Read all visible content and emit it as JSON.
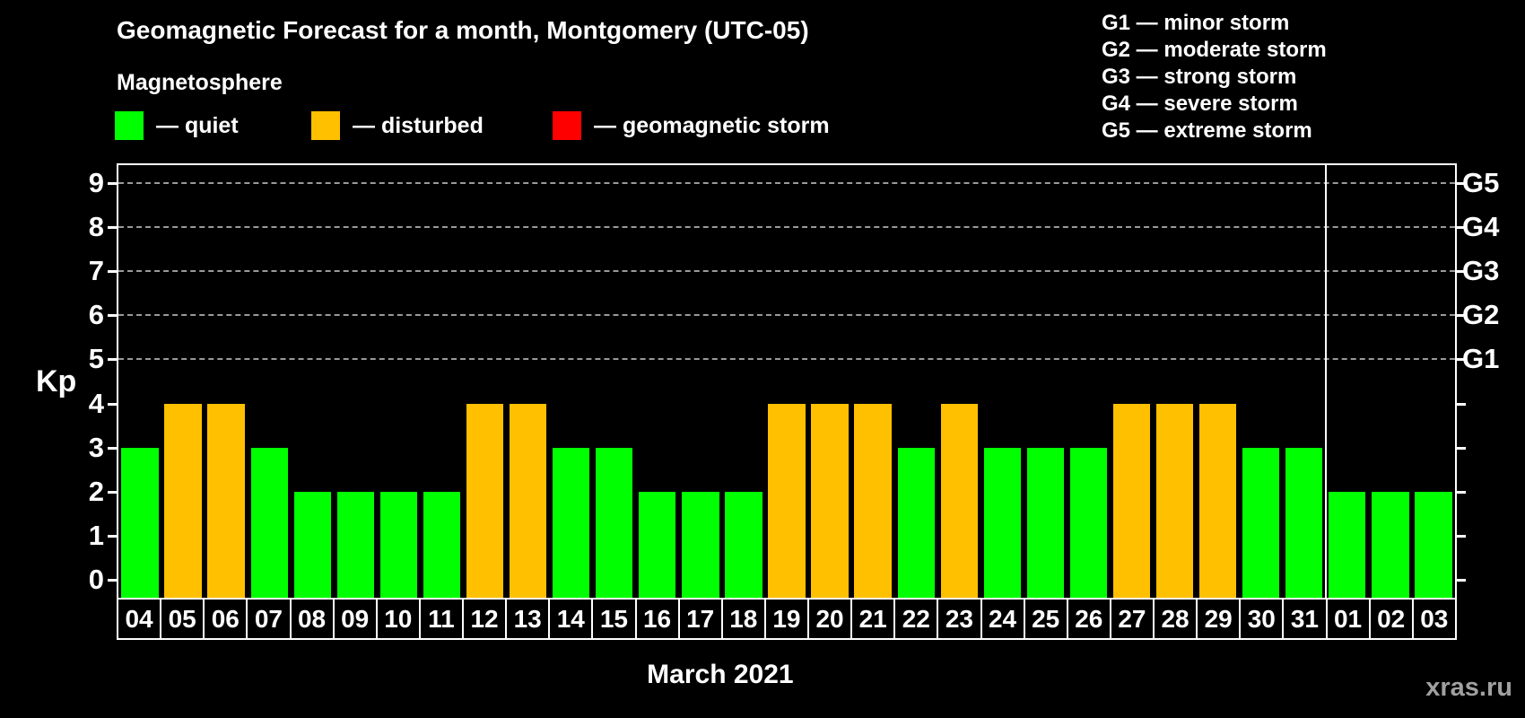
{
  "title": "Geomagnetic Forecast for a month, Montgomery (UTC-05)",
  "subtitle": "Magnetosphere",
  "kp_legend": [
    {
      "label": "— quiet",
      "color": "#00ff00"
    },
    {
      "label": "— disturbed",
      "color": "#ffc000"
    },
    {
      "label": "— geomagnetic storm",
      "color": "#ff0000"
    }
  ],
  "g_legend": [
    "G1 — minor storm",
    "G2 — moderate storm",
    "G3 — strong storm",
    "G4 — severe storm",
    "G5 — extreme storm"
  ],
  "watermark": "xras.ru",
  "chart_data": {
    "type": "bar",
    "title": "Geomagnetic Forecast for a month, Montgomery (UTC-05)",
    "ylabel": "Kp",
    "month_label": "March 2021",
    "ylim": [
      0,
      9
    ],
    "grid": "dashed horizontal at Kp 5-9",
    "legend_position": "top",
    "categories": [
      "04",
      "05",
      "06",
      "07",
      "08",
      "09",
      "10",
      "11",
      "12",
      "13",
      "14",
      "15",
      "16",
      "17",
      "18",
      "19",
      "20",
      "21",
      "22",
      "23",
      "24",
      "25",
      "26",
      "27",
      "28",
      "29",
      "30",
      "31",
      "01",
      "02",
      "03"
    ],
    "values": [
      3,
      4,
      4,
      3,
      2,
      2,
      2,
      2,
      4,
      4,
      3,
      3,
      2,
      2,
      2,
      4,
      4,
      4,
      3,
      4,
      3,
      3,
      3,
      4,
      4,
      4,
      3,
      3,
      2,
      2,
      2
    ],
    "month_boundary_after_index": 27,
    "y_ticks_left": [
      "0",
      "1",
      "2",
      "3",
      "4",
      "5",
      "6",
      "7",
      "8",
      "9"
    ],
    "g_levels": [
      {
        "kp": 5,
        "label": "G1"
      },
      {
        "kp": 6,
        "label": "G2"
      },
      {
        "kp": 7,
        "label": "G3"
      },
      {
        "kp": 8,
        "label": "G4"
      },
      {
        "kp": 9,
        "label": "G5"
      }
    ],
    "gridlines_at": [
      5,
      6,
      7,
      8,
      9
    ],
    "status_colors": {
      "quiet": "#00ff00",
      "disturbed": "#ffc000",
      "storm": "#ff0000"
    },
    "status_thresholds": {
      "disturbed_min": 4,
      "storm_min": 5
    },
    "axis_color": "#ffffff",
    "gridline_color": "#9a9a9a",
    "background_color": "#000000"
  }
}
